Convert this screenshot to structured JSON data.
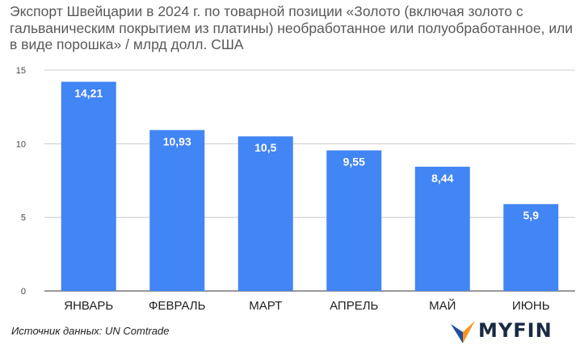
{
  "title": "Экспорт Швейцарии в 2024 г. по товарной позиции «Золото (включая золото с гальваническим покрытием из платины) необработанное или полуобработанное, или в виде порошка» / млрд долл. США",
  "source": "Источник данных: UN Comtrade",
  "brand": {
    "name": "MYFIN",
    "colors": {
      "text": "#1a2a44",
      "primary": "#1f4e9c",
      "accent": "#f7941d"
    }
  },
  "chart_data": {
    "type": "bar",
    "categories": [
      "ЯНВАРЬ",
      "ФЕВРАЛЬ",
      "МАРТ",
      "АПРЕЛЬ",
      "МАЙ",
      "ИЮНЬ"
    ],
    "values": [
      14.21,
      10.93,
      10.5,
      9.55,
      8.44,
      5.9
    ],
    "value_labels": [
      "14,21",
      "10,93",
      "10,5",
      "9,55",
      "8,44",
      "5,9"
    ],
    "ylim": [
      0,
      15
    ],
    "yticks": [
      0,
      5,
      10,
      15
    ],
    "bar_color": "#4285f4",
    "grid": true,
    "xlabel": "",
    "ylabel": ""
  }
}
